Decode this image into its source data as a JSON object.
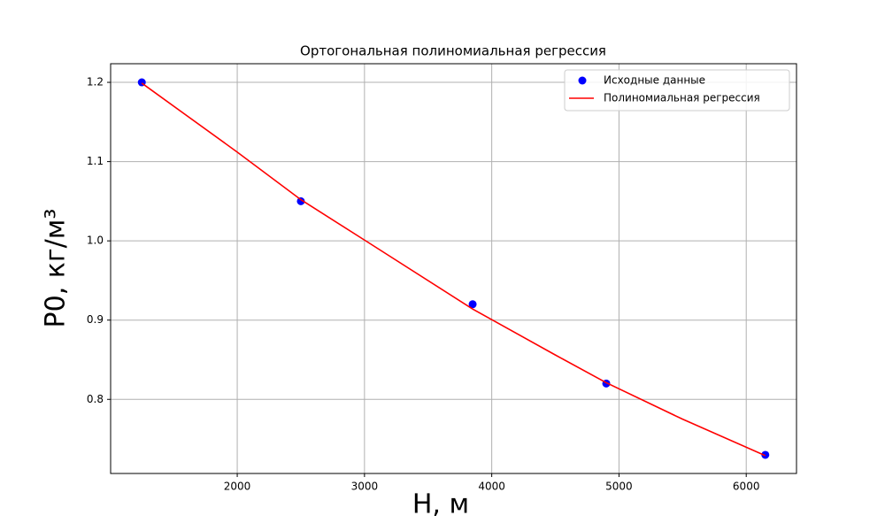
{
  "chart_data": {
    "type": "scatter",
    "title": "Ортогональная полиномиальная регрессия",
    "xlabel": "H, м",
    "ylabel": "P0, кг/м³",
    "xlim": [
      1005,
      6395
    ],
    "ylim": [
      0.7065,
      1.2235
    ],
    "xticks": [
      2000,
      3000,
      4000,
      5000,
      6000
    ],
    "yticks": [
      0.8,
      0.9,
      {
        "value": 1,
        "label": "1.0"
      },
      1.1,
      1.2
    ],
    "grid": true,
    "legend": "upper right",
    "series": [
      {
        "name": "Исходные данные",
        "type": "scatter",
        "color": "#0000ff",
        "x": [
          1250,
          2500,
          3850,
          4900,
          6150
        ],
        "values": [
          1.2,
          1.05,
          0.92,
          0.82,
          0.73
        ]
      },
      {
        "name": "Полиномиальная регрессия",
        "type": "line",
        "color": "#ff0000",
        "x": [
          1250,
          2000,
          2500,
          3000,
          3850,
          4500,
          4900,
          5500,
          6150
        ],
        "values": [
          1.199,
          1.112,
          1.052,
          1.001,
          0.914,
          0.856,
          0.821,
          0.775,
          0.729
        ]
      }
    ]
  }
}
